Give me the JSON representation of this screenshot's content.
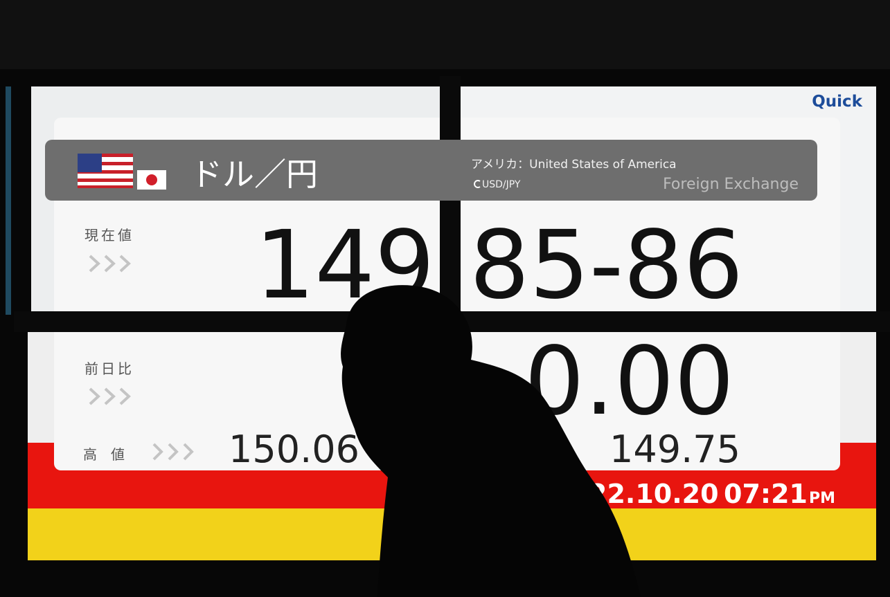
{
  "board": {
    "brand": "Quick",
    "pair_jp": "ドル／円",
    "country": "アメリカ：United States of America",
    "pair_code": "USD/JPY",
    "category": "Foreign Exchange",
    "current": {
      "label": "現在値",
      "integer": "149",
      "decimal": "85-86"
    },
    "change": {
      "label": "前日比",
      "value": "0.00"
    },
    "high": {
      "label": "高　値",
      "value": "150.06"
    },
    "low": {
      "value": "149.75"
    },
    "timestamp": {
      "date": "22.10.20",
      "time": "07:21",
      "period": "PM"
    }
  }
}
